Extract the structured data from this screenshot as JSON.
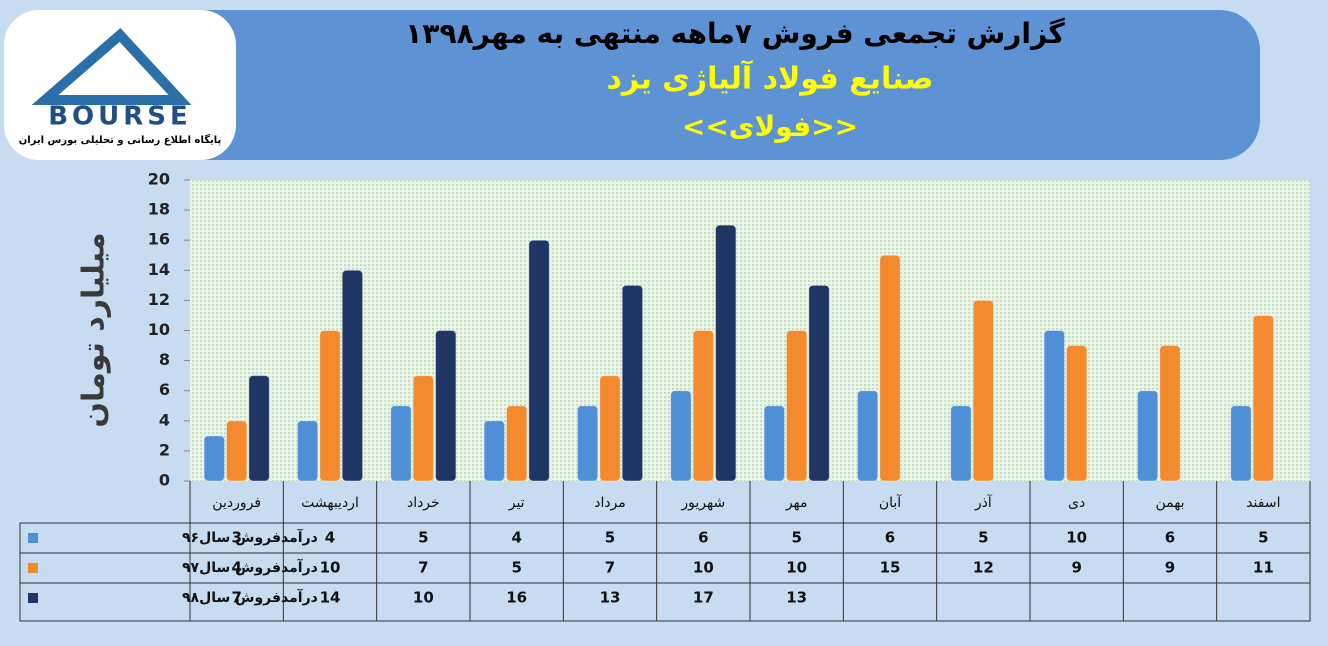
{
  "chart_data": {
    "type": "bar",
    "title": "گزارش تجمعی فروش ۷ماهه منتهی به مهر۱۳۹۸",
    "subtitle": "صنایع فولاد آلیاژی یزد",
    "symbol": "<<فولای>>",
    "logo_text": "BOURSE",
    "logo_caption": "پایگاه اطلاع رسانی و تحلیلی بورس ایران",
    "y_label": "میلیارد تومان",
    "categories": [
      "فروردین",
      "اردیبهشت",
      "خرداد",
      "تیر",
      "مرداد",
      "شهریور",
      "مهر",
      "آبان",
      "آذر",
      "دی",
      "بهمن",
      "اسفند"
    ],
    "series": [
      {
        "name": "درآمدفروش سال۹۶",
        "color": "#4f8fd6",
        "values": [
          3,
          4,
          5,
          4,
          5,
          6,
          5,
          6,
          5,
          10,
          6,
          5
        ]
      },
      {
        "name": "درآمدفروش سال۹۷",
        "color": "#f38a2e",
        "values": [
          4,
          10,
          7,
          5,
          7,
          10,
          10,
          15,
          12,
          9,
          9,
          11
        ]
      },
      {
        "name": "درآمدفروش سال۹۸",
        "color": "#1f3564",
        "values": [
          7,
          14,
          10,
          16,
          13,
          17,
          13,
          null,
          null,
          null,
          null,
          null
        ]
      }
    ],
    "ylim": [
      0,
      20
    ],
    "yticks": [
      0,
      2,
      4,
      6,
      8,
      10,
      12,
      14,
      16,
      18,
      20
    ]
  }
}
